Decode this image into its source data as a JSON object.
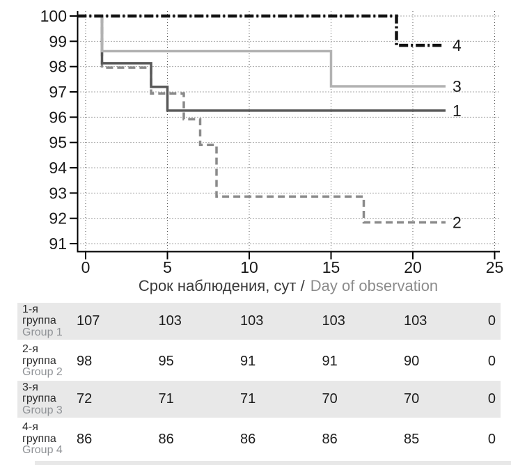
{
  "chart_data": {
    "type": "line",
    "subtype": "kaplan-meier-step-survival",
    "title": "",
    "xlabel_ru": "Срок наблюдения, сут /",
    "xlabel_en": "Day of observation",
    "ylabel": "",
    "xlim": [
      0,
      25
    ],
    "ylim": [
      91,
      100
    ],
    "x_ticks": [
      0,
      5,
      10,
      15,
      20,
      25
    ],
    "y_ticks": [
      91,
      92,
      93,
      94,
      95,
      96,
      97,
      98,
      99,
      100
    ],
    "grid": "dotted both axes",
    "legend_position": "right-end-labels",
    "series": [
      {
        "name": "Group 1",
        "label": "1",
        "color": "#595959",
        "dash": "",
        "width": 3.5,
        "points": [
          [
            1,
            100
          ],
          [
            1,
            98.13
          ],
          [
            4,
            98.13
          ],
          [
            4,
            97.2
          ],
          [
            5,
            97.2
          ],
          [
            5,
            96.26
          ],
          [
            22,
            96.26
          ]
        ]
      },
      {
        "name": "Group 2",
        "label": "2",
        "color": "#8a8a8a",
        "dash": "10 6",
        "width": 3.5,
        "points": [
          [
            1,
            100
          ],
          [
            1,
            97.96
          ],
          [
            4,
            97.96
          ],
          [
            4,
            96.94
          ],
          [
            6,
            96.94
          ],
          [
            6,
            95.92
          ],
          [
            7,
            95.92
          ],
          [
            7,
            94.9
          ],
          [
            8,
            94.9
          ],
          [
            8,
            92.86
          ],
          [
            17,
            92.86
          ],
          [
            17,
            91.84
          ],
          [
            22,
            91.84
          ]
        ]
      },
      {
        "name": "Group 3",
        "label": "3",
        "color": "#b2b2b2",
        "dash": "",
        "width": 3.5,
        "points": [
          [
            1,
            100
          ],
          [
            1,
            98.61
          ],
          [
            15,
            98.61
          ],
          [
            15,
            97.22
          ],
          [
            22,
            97.22
          ]
        ]
      },
      {
        "name": "Group 4",
        "label": "4",
        "color": "#111111",
        "dash": "13 4 3 4",
        "width": 4.5,
        "points": [
          [
            -0.5,
            100
          ],
          [
            19,
            100
          ],
          [
            19,
            98.84
          ],
          [
            21.9,
            98.84
          ]
        ]
      }
    ],
    "draw_order": [
      1,
      0,
      2,
      3
    ],
    "colors": {
      "axis": "#000000",
      "grid": "#555555",
      "tick_label": "#1a1a1a",
      "axis_title_ru": "#3b3b3b",
      "axis_title_en": "#8c8c8c",
      "series_end_label": "#1a1a1a"
    }
  },
  "table": {
    "row_alt_bg": "#e8e8e8",
    "rows": [
      {
        "label_ru_top": "1-я",
        "label_ru_bottom": "группа",
        "label_en": "Group 1",
        "values": [
          "107",
          "103",
          "103",
          "103",
          "103",
          "0"
        ]
      },
      {
        "label_ru_top": "2-я",
        "label_ru_bottom": "группа",
        "label_en": "Group 2",
        "values": [
          "98",
          "95",
          "91",
          "91",
          "90",
          "0"
        ]
      },
      {
        "label_ru_top": "3-я",
        "label_ru_bottom": "группа",
        "label_en": "Group 3",
        "values": [
          "72",
          "71",
          "71",
          "70",
          "70",
          "0"
        ]
      },
      {
        "label_ru_top": "4-я",
        "label_ru_bottom": "группа",
        "label_en": "Group 4",
        "values": [
          "86",
          "86",
          "86",
          "86",
          "85",
          "0"
        ]
      }
    ]
  }
}
